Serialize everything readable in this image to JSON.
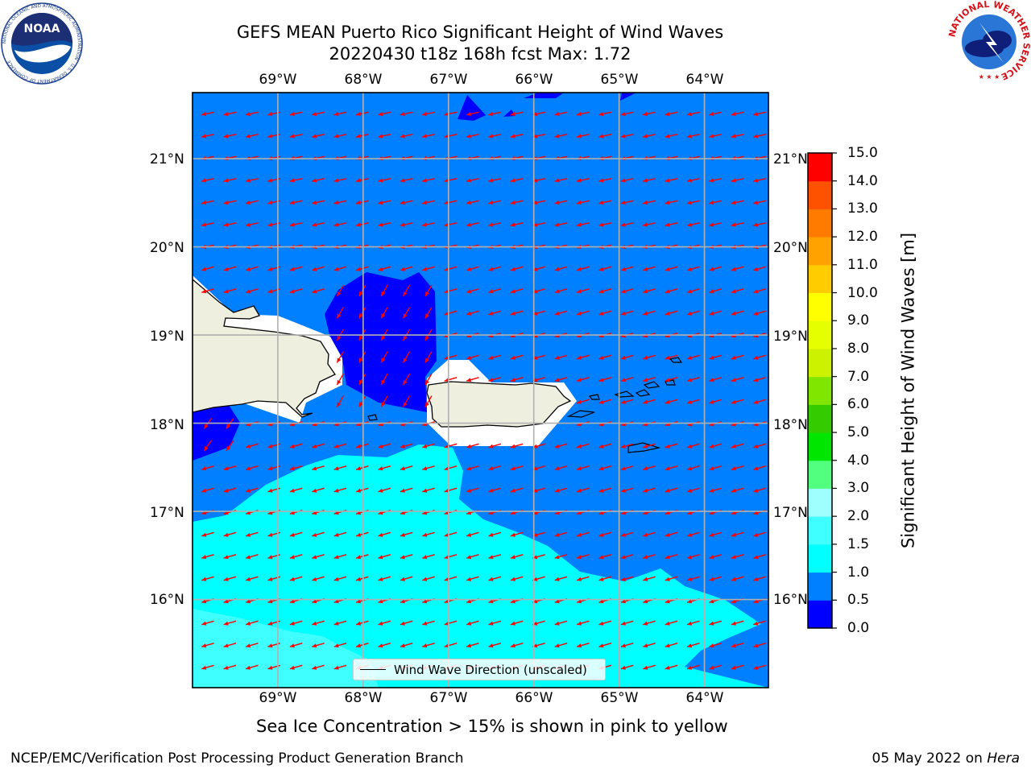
{
  "title": {
    "line1": "GEFS MEAN Puerto Rico Significant Height of Wind Waves",
    "line2": "20220430 t18z 168h fcst   Max: 1.72"
  },
  "logos": {
    "noaa_text": "NOAA",
    "noaa_ring": "NATIONAL OCEANIC AND ATMOSPHERIC ADMINISTRATION · U.S. DEPARTMENT OF COMMERCE",
    "nws_ring": "NATIONAL WEATHER SERVICE"
  },
  "map": {
    "lon_ticks": [
      "69°W",
      "68°W",
      "67°W",
      "66°W",
      "65°W",
      "64°W"
    ],
    "lat_ticks": [
      "21°N",
      "20°N",
      "19°N",
      "18°N",
      "17°N",
      "16°N"
    ],
    "lon_range": [
      -70.0,
      -63.25
    ],
    "lat_range": [
      15.0,
      21.75
    ],
    "grid": true,
    "arrow_color": "#ff0000",
    "coastline_color": "#000000",
    "land_color": "#efefe0",
    "masked_color": "#ffffff",
    "wave_direction": "toward west-southwest in the open Caribbean, toward south-southwest north of the islands"
  },
  "colorbar": {
    "label": "Significant Height of Wind Waves [m]",
    "levels": [
      "0.0",
      "0.5",
      "1.0",
      "1.5",
      "2.0",
      "3.0",
      "4.0",
      "5.0",
      "6.0",
      "7.0",
      "8.0",
      "9.0",
      "10.0",
      "11.0",
      "12.0",
      "13.0",
      "14.0",
      "15.0"
    ],
    "colors": [
      "#0000ff",
      "#0080ff",
      "#00ffff",
      "#40ffff",
      "#9ffefe",
      "#52ff7f",
      "#00e600",
      "#34cc00",
      "#80e600",
      "#ccf200",
      "#e6ff00",
      "#ffff00",
      "#ffcc00",
      "#ffa200",
      "#ff7b00",
      "#ff5200",
      "#ff0000"
    ]
  },
  "legend": {
    "label": "Wind Wave Direction (unscaled)"
  },
  "notes": {
    "ice": "Sea Ice Concentration > 15% is shown in pink to yellow",
    "footer_left": "NCEP/EMC/Verification Post Processing Product Generation Branch",
    "footer_date": "05 May 2022 on ",
    "footer_host": "Hera"
  }
}
